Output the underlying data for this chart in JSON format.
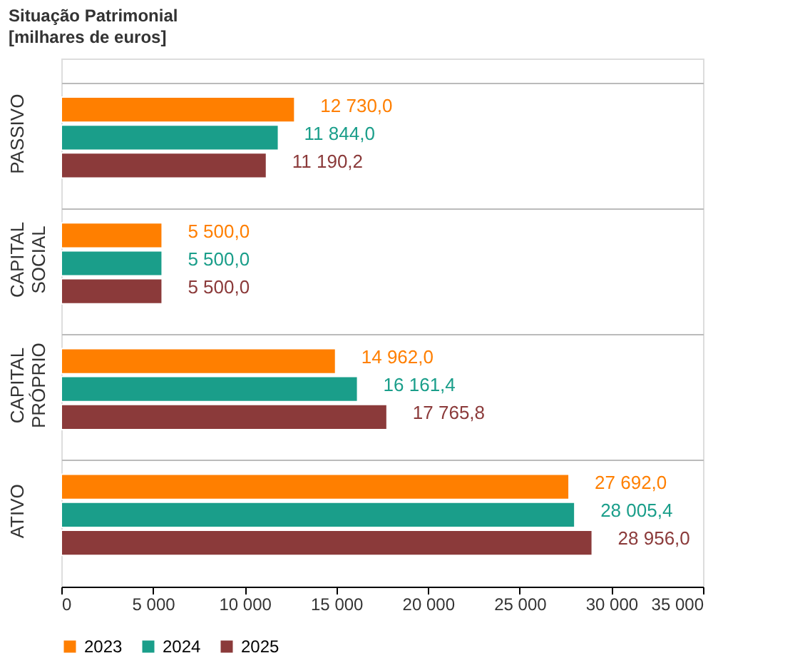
{
  "chart_data": {
    "type": "bar",
    "orientation": "horizontal",
    "title": "Situação Patrimonial",
    "subtitle": "[milhares de euros]",
    "categories": [
      "PASSIVO",
      "CAPITAL SOCIAL",
      "CAPITAL PRÓPRIO",
      "ATIVO"
    ],
    "series": [
      {
        "name": "2023",
        "color": "#ff7f00",
        "values": [
          12730.0,
          5500.0,
          14962.0,
          27692.0
        ],
        "value_labels": [
          "12 730,0",
          "5 500,0",
          "14 962,0",
          "27 692,0"
        ]
      },
      {
        "name": "2024",
        "color": "#1a9e8a",
        "values": [
          11844.0,
          5500.0,
          16161.4,
          28005.4
        ],
        "value_labels": [
          "11 844,0",
          "5 500,0",
          "16 161,4",
          "28 005,4"
        ]
      },
      {
        "name": "2025",
        "color": "#8b3a3a",
        "values": [
          11190.2,
          5500.0,
          17765.8,
          28956.0
        ],
        "value_labels": [
          "11 190,2",
          "5 500,0",
          "17 765,8",
          "28 956,0"
        ]
      }
    ],
    "xlim": [
      0,
      35000
    ],
    "xticks": [
      0,
      {
        "value": 5000,
        "label": "5 000"
      },
      {
        "value": 10000,
        "label": "10 000"
      },
      {
        "value": 15000,
        "label": "15 000"
      },
      {
        "value": 20000,
        "label": "20 000"
      },
      {
        "value": 25000,
        "label": "25 000"
      },
      {
        "value": 30000,
        "label": "30 000"
      },
      {
        "value": 35000,
        "label": "35 000"
      }
    ],
    "grid": "y",
    "legend": "bottom"
  }
}
